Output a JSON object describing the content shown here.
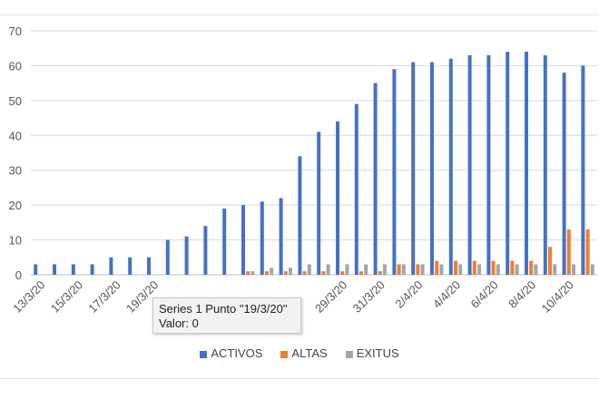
{
  "chart_data": {
    "type": "bar",
    "title": "",
    "xlabel": "",
    "ylabel": "",
    "ylim": [
      0,
      70
    ],
    "yticks": [
      0,
      10,
      20,
      30,
      40,
      50,
      60,
      70
    ],
    "grid": true,
    "legend_position": "bottom",
    "categories": [
      "13/3/20",
      "14/3/20",
      "15/3/20",
      "16/3/20",
      "17/3/20",
      "18/3/20",
      "19/3/20",
      "20/3/20",
      "21/3/20",
      "22/3/20",
      "23/3/20",
      "24/3/20",
      "25/3/20",
      "26/3/20",
      "27/3/20",
      "28/3/20",
      "29/3/20",
      "30/3/20",
      "31/3/20",
      "1/4/20",
      "2/4/20",
      "3/4/20",
      "4/4/20",
      "5/4/20",
      "6/4/20",
      "7/4/20",
      "8/4/20",
      "9/4/20",
      "10/4/20",
      "11/4/20"
    ],
    "tick_labels": [
      "13/3/20",
      "",
      "15/3/20",
      "",
      "17/3/20",
      "",
      "19/3/20",
      "",
      "",
      "",
      "",
      "",
      "",
      "",
      "",
      "",
      "29/3/20",
      "",
      "31/3/20",
      "",
      "2/4/20",
      "",
      "4/4/20",
      "",
      "6/4/20",
      "",
      "8/4/20",
      "",
      "10/4/20",
      ""
    ],
    "series": [
      {
        "name": "ACTIVOS",
        "color": "#4472c4",
        "values": [
          3,
          3,
          3,
          3,
          5,
          5,
          5,
          10,
          11,
          14,
          19,
          20,
          21,
          22,
          34,
          41,
          44,
          49,
          55,
          59,
          61,
          61,
          62,
          63,
          63,
          64,
          64,
          63,
          58,
          60
        ]
      },
      {
        "name": "ALTAS",
        "color": "#ed7d31",
        "values": [
          0,
          0,
          0,
          0,
          0,
          0,
          0,
          0,
          0,
          0,
          0,
          1,
          1,
          1,
          1,
          1,
          1,
          1,
          1,
          3,
          3,
          4,
          4,
          4,
          4,
          4,
          4,
          8,
          13,
          13
        ]
      },
      {
        "name": "EXITUS",
        "color": "#a5a5a5",
        "values": [
          0,
          0,
          0,
          0,
          0,
          0,
          0,
          0,
          0,
          0,
          0,
          1,
          2,
          2,
          3,
          3,
          3,
          3,
          3,
          3,
          3,
          3,
          3,
          3,
          3,
          3,
          3,
          3,
          3,
          3
        ]
      }
    ]
  },
  "tooltip": {
    "line1": "Series 1 Punto \"19/3/20\"",
    "line2": "Valor: 0"
  }
}
